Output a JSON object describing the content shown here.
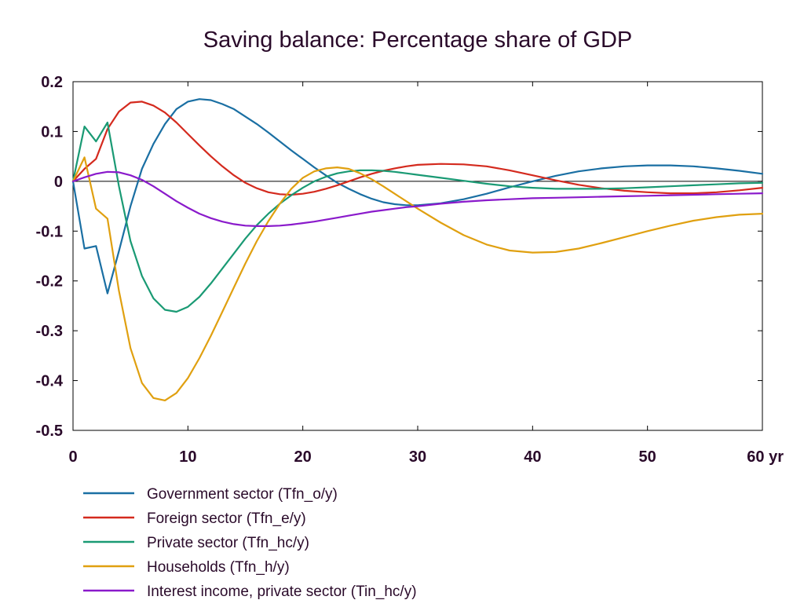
{
  "chart_data": {
    "type": "line",
    "title": "Saving balance: Percentage share of GDP",
    "xlabel": "",
    "ylabel": "",
    "xlim": [
      0,
      60
    ],
    "ylim": [
      -0.5,
      0.2
    ],
    "x_ticks": [
      0,
      10,
      20,
      30,
      40,
      50,
      60
    ],
    "x_tick_labels": [
      "0",
      "10",
      "20",
      "30",
      "40",
      "50",
      "60 yr"
    ],
    "y_ticks": [
      0.2,
      0.1,
      0,
      -0.1,
      -0.2,
      -0.3,
      -0.4,
      -0.5
    ],
    "y_tick_labels": [
      "0.2",
      "0.1",
      "0",
      "-0.1",
      "-0.2",
      "-0.3",
      "-0.4",
      "-0.5"
    ],
    "grid": false,
    "legend_position": "bottom",
    "zero_line": true,
    "series": [
      {
        "name": "Government sector (Tfn_o/y)",
        "color": "#1a6fa3",
        "x": [
          0,
          1,
          2,
          3,
          4,
          5,
          6,
          7,
          8,
          9,
          10,
          11,
          12,
          13,
          14,
          15,
          16,
          17,
          18,
          19,
          20,
          21,
          22,
          23,
          24,
          25,
          26,
          27,
          28,
          29,
          30,
          32,
          34,
          36,
          38,
          40,
          42,
          44,
          46,
          48,
          50,
          52,
          54,
          56,
          58,
          60
        ],
        "y": [
          0,
          -0.135,
          -0.13,
          -0.225,
          -0.14,
          -0.05,
          0.025,
          0.075,
          0.115,
          0.145,
          0.16,
          0.165,
          0.163,
          0.155,
          0.145,
          0.13,
          0.115,
          0.098,
          0.08,
          0.062,
          0.045,
          0.028,
          0.012,
          -0.003,
          -0.015,
          -0.026,
          -0.035,
          -0.042,
          -0.046,
          -0.048,
          -0.048,
          -0.044,
          -0.036,
          -0.025,
          -0.012,
          0.0,
          0.011,
          0.02,
          0.026,
          0.03,
          0.032,
          0.032,
          0.03,
          0.026,
          0.021,
          0.015
        ]
      },
      {
        "name": "Foreign sector (Tfn_e/y)",
        "color": "#d42a1e",
        "x": [
          0,
          1,
          2,
          3,
          4,
          5,
          6,
          7,
          8,
          9,
          10,
          11,
          12,
          13,
          14,
          15,
          16,
          17,
          18,
          19,
          20,
          21,
          22,
          23,
          24,
          25,
          26,
          27,
          28,
          29,
          30,
          32,
          34,
          36,
          38,
          40,
          42,
          44,
          46,
          48,
          50,
          52,
          54,
          56,
          58,
          60
        ],
        "y": [
          0,
          0.025,
          0.045,
          0.105,
          0.14,
          0.158,
          0.16,
          0.152,
          0.138,
          0.118,
          0.095,
          0.072,
          0.05,
          0.03,
          0.012,
          -0.003,
          -0.014,
          -0.022,
          -0.026,
          -0.027,
          -0.025,
          -0.021,
          -0.015,
          -0.008,
          0.0,
          0.008,
          0.015,
          0.021,
          0.026,
          0.03,
          0.033,
          0.035,
          0.034,
          0.03,
          0.022,
          0.012,
          0.002,
          -0.007,
          -0.014,
          -0.019,
          -0.022,
          -0.024,
          -0.024,
          -0.022,
          -0.018,
          -0.013
        ]
      },
      {
        "name": "Private sector (Tfn_hc/y)",
        "color": "#1a9a74",
        "x": [
          0,
          1,
          2,
          3,
          4,
          5,
          6,
          7,
          8,
          9,
          10,
          11,
          12,
          13,
          14,
          15,
          16,
          17,
          18,
          19,
          20,
          21,
          22,
          23,
          24,
          25,
          26,
          27,
          28,
          29,
          30,
          32,
          34,
          36,
          38,
          40,
          42,
          44,
          46,
          48,
          50,
          52,
          54,
          56,
          58,
          60
        ],
        "y": [
          0,
          0.11,
          0.08,
          0.118,
          -0.01,
          -0.12,
          -0.19,
          -0.235,
          -0.258,
          -0.262,
          -0.252,
          -0.232,
          -0.205,
          -0.175,
          -0.145,
          -0.115,
          -0.088,
          -0.065,
          -0.045,
          -0.028,
          -0.013,
          0.0,
          0.009,
          0.016,
          0.02,
          0.022,
          0.022,
          0.021,
          0.019,
          0.016,
          0.013,
          0.007,
          0.001,
          -0.005,
          -0.01,
          -0.013,
          -0.015,
          -0.015,
          -0.015,
          -0.014,
          -0.012,
          -0.01,
          -0.008,
          -0.006,
          -0.004,
          -0.003
        ]
      },
      {
        "name": "Households (Tfn_h/y)",
        "color": "#e0a010",
        "x": [
          0,
          1,
          2,
          3,
          4,
          5,
          6,
          7,
          8,
          9,
          10,
          11,
          12,
          13,
          14,
          15,
          16,
          17,
          18,
          19,
          20,
          21,
          22,
          23,
          24,
          25,
          26,
          27,
          28,
          29,
          30,
          32,
          34,
          36,
          38,
          40,
          42,
          44,
          46,
          48,
          50,
          52,
          54,
          56,
          58,
          60
        ],
        "y": [
          0,
          0.048,
          -0.055,
          -0.075,
          -0.22,
          -0.335,
          -0.405,
          -0.435,
          -0.44,
          -0.425,
          -0.395,
          -0.355,
          -0.31,
          -0.262,
          -0.213,
          -0.165,
          -0.12,
          -0.08,
          -0.045,
          -0.015,
          0.007,
          0.02,
          0.026,
          0.028,
          0.025,
          0.016,
          0.004,
          -0.01,
          -0.025,
          -0.04,
          -0.055,
          -0.083,
          -0.108,
          -0.127,
          -0.139,
          -0.143,
          -0.142,
          -0.135,
          -0.124,
          -0.112,
          -0.1,
          -0.089,
          -0.079,
          -0.072,
          -0.067,
          -0.065
        ]
      },
      {
        "name": "Interest income, private sector (Tin_hc/y)",
        "color": "#8a1acb",
        "x": [
          0,
          1,
          2,
          3,
          4,
          5,
          6,
          7,
          8,
          9,
          10,
          11,
          12,
          13,
          14,
          15,
          16,
          17,
          18,
          19,
          20,
          21,
          22,
          23,
          24,
          25,
          26,
          27,
          28,
          29,
          30,
          32,
          34,
          36,
          38,
          40,
          42,
          44,
          46,
          48,
          50,
          52,
          54,
          56,
          58,
          60
        ],
        "y": [
          0,
          0.008,
          0.015,
          0.019,
          0.018,
          0.012,
          0.003,
          -0.01,
          -0.025,
          -0.04,
          -0.053,
          -0.065,
          -0.074,
          -0.081,
          -0.086,
          -0.089,
          -0.09,
          -0.09,
          -0.089,
          -0.087,
          -0.084,
          -0.081,
          -0.077,
          -0.073,
          -0.069,
          -0.065,
          -0.061,
          -0.058,
          -0.055,
          -0.052,
          -0.05,
          -0.045,
          -0.041,
          -0.038,
          -0.036,
          -0.034,
          -0.033,
          -0.032,
          -0.031,
          -0.03,
          -0.029,
          -0.028,
          -0.027,
          -0.026,
          -0.025,
          -0.024
        ]
      }
    ]
  }
}
